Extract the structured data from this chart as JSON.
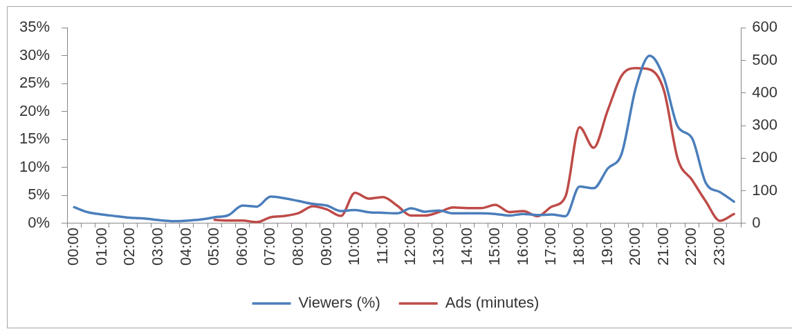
{
  "chart_data": {
    "type": "line",
    "categories": [
      "00:00",
      null,
      "01:00",
      null,
      "02:00",
      null,
      "03:00",
      null,
      "04:00",
      null,
      "05:00",
      null,
      "06:00",
      null,
      "07:00",
      null,
      "08:00",
      null,
      "09:00",
      null,
      "10:00",
      null,
      "11:00",
      null,
      "12:00",
      null,
      "13:00",
      null,
      "14:00",
      null,
      "15:00",
      null,
      "16:00",
      null,
      "17:00",
      null,
      "18:00",
      null,
      "19:00",
      null,
      "20:00",
      null,
      "21:00",
      null,
      "22:00",
      null,
      "23:00",
      null
    ],
    "series": [
      {
        "name": "Viewers (%)",
        "color": "#4a7ebb",
        "values": [
          2.9,
          2.0,
          1.6,
          1.3,
          1.0,
          0.9,
          0.6,
          0.4,
          0.5,
          0.7,
          1.1,
          1.5,
          3.2,
          3.0,
          4.8,
          4.5,
          4.0,
          3.5,
          3.2,
          2.2,
          2.4,
          2.0,
          1.9,
          1.8,
          2.7,
          2.1,
          2.3,
          1.8,
          1.8,
          1.8,
          1.7,
          1.4,
          1.7,
          1.5,
          1.6,
          1.3,
          6.6,
          6.3,
          9.8,
          12.5,
          24.2,
          30.0,
          26.1,
          17.3,
          15.3,
          7.2,
          5.6,
          3.9
        ]
      },
      {
        "name": "Ads (minutes)",
        "color": "#be4b48",
        "axis": "y2",
        "values": [
          null,
          null,
          null,
          null,
          null,
          null,
          null,
          null,
          null,
          null,
          11,
          9,
          9,
          4,
          19,
          23,
          32,
          53,
          43,
          23,
          94,
          76,
          81,
          55,
          24,
          24,
          35,
          49,
          47,
          47,
          57,
          35,
          38,
          22,
          51,
          83,
          295,
          232,
          346,
          453,
          476,
          472,
          409,
          197,
          134,
          67,
          8,
          29
        ]
      }
    ],
    "ylim": [
      0,
      35
    ],
    "yticks": [
      {
        "value": 0,
        "label": "0%"
      },
      {
        "value": 5,
        "label": "5%"
      },
      {
        "value": 10,
        "label": "10%"
      },
      {
        "value": 15,
        "label": "15%"
      },
      {
        "value": 20,
        "label": "20%"
      },
      {
        "value": 25,
        "label": "25%"
      },
      {
        "value": 30,
        "label": "30%"
      },
      {
        "value": 35,
        "label": "35%"
      }
    ],
    "y2lim": [
      0,
      600
    ],
    "y2ticks": [
      0,
      100,
      200,
      300,
      400,
      500,
      600
    ],
    "legend": "bottom",
    "marker": "none",
    "line_style": "solid"
  }
}
